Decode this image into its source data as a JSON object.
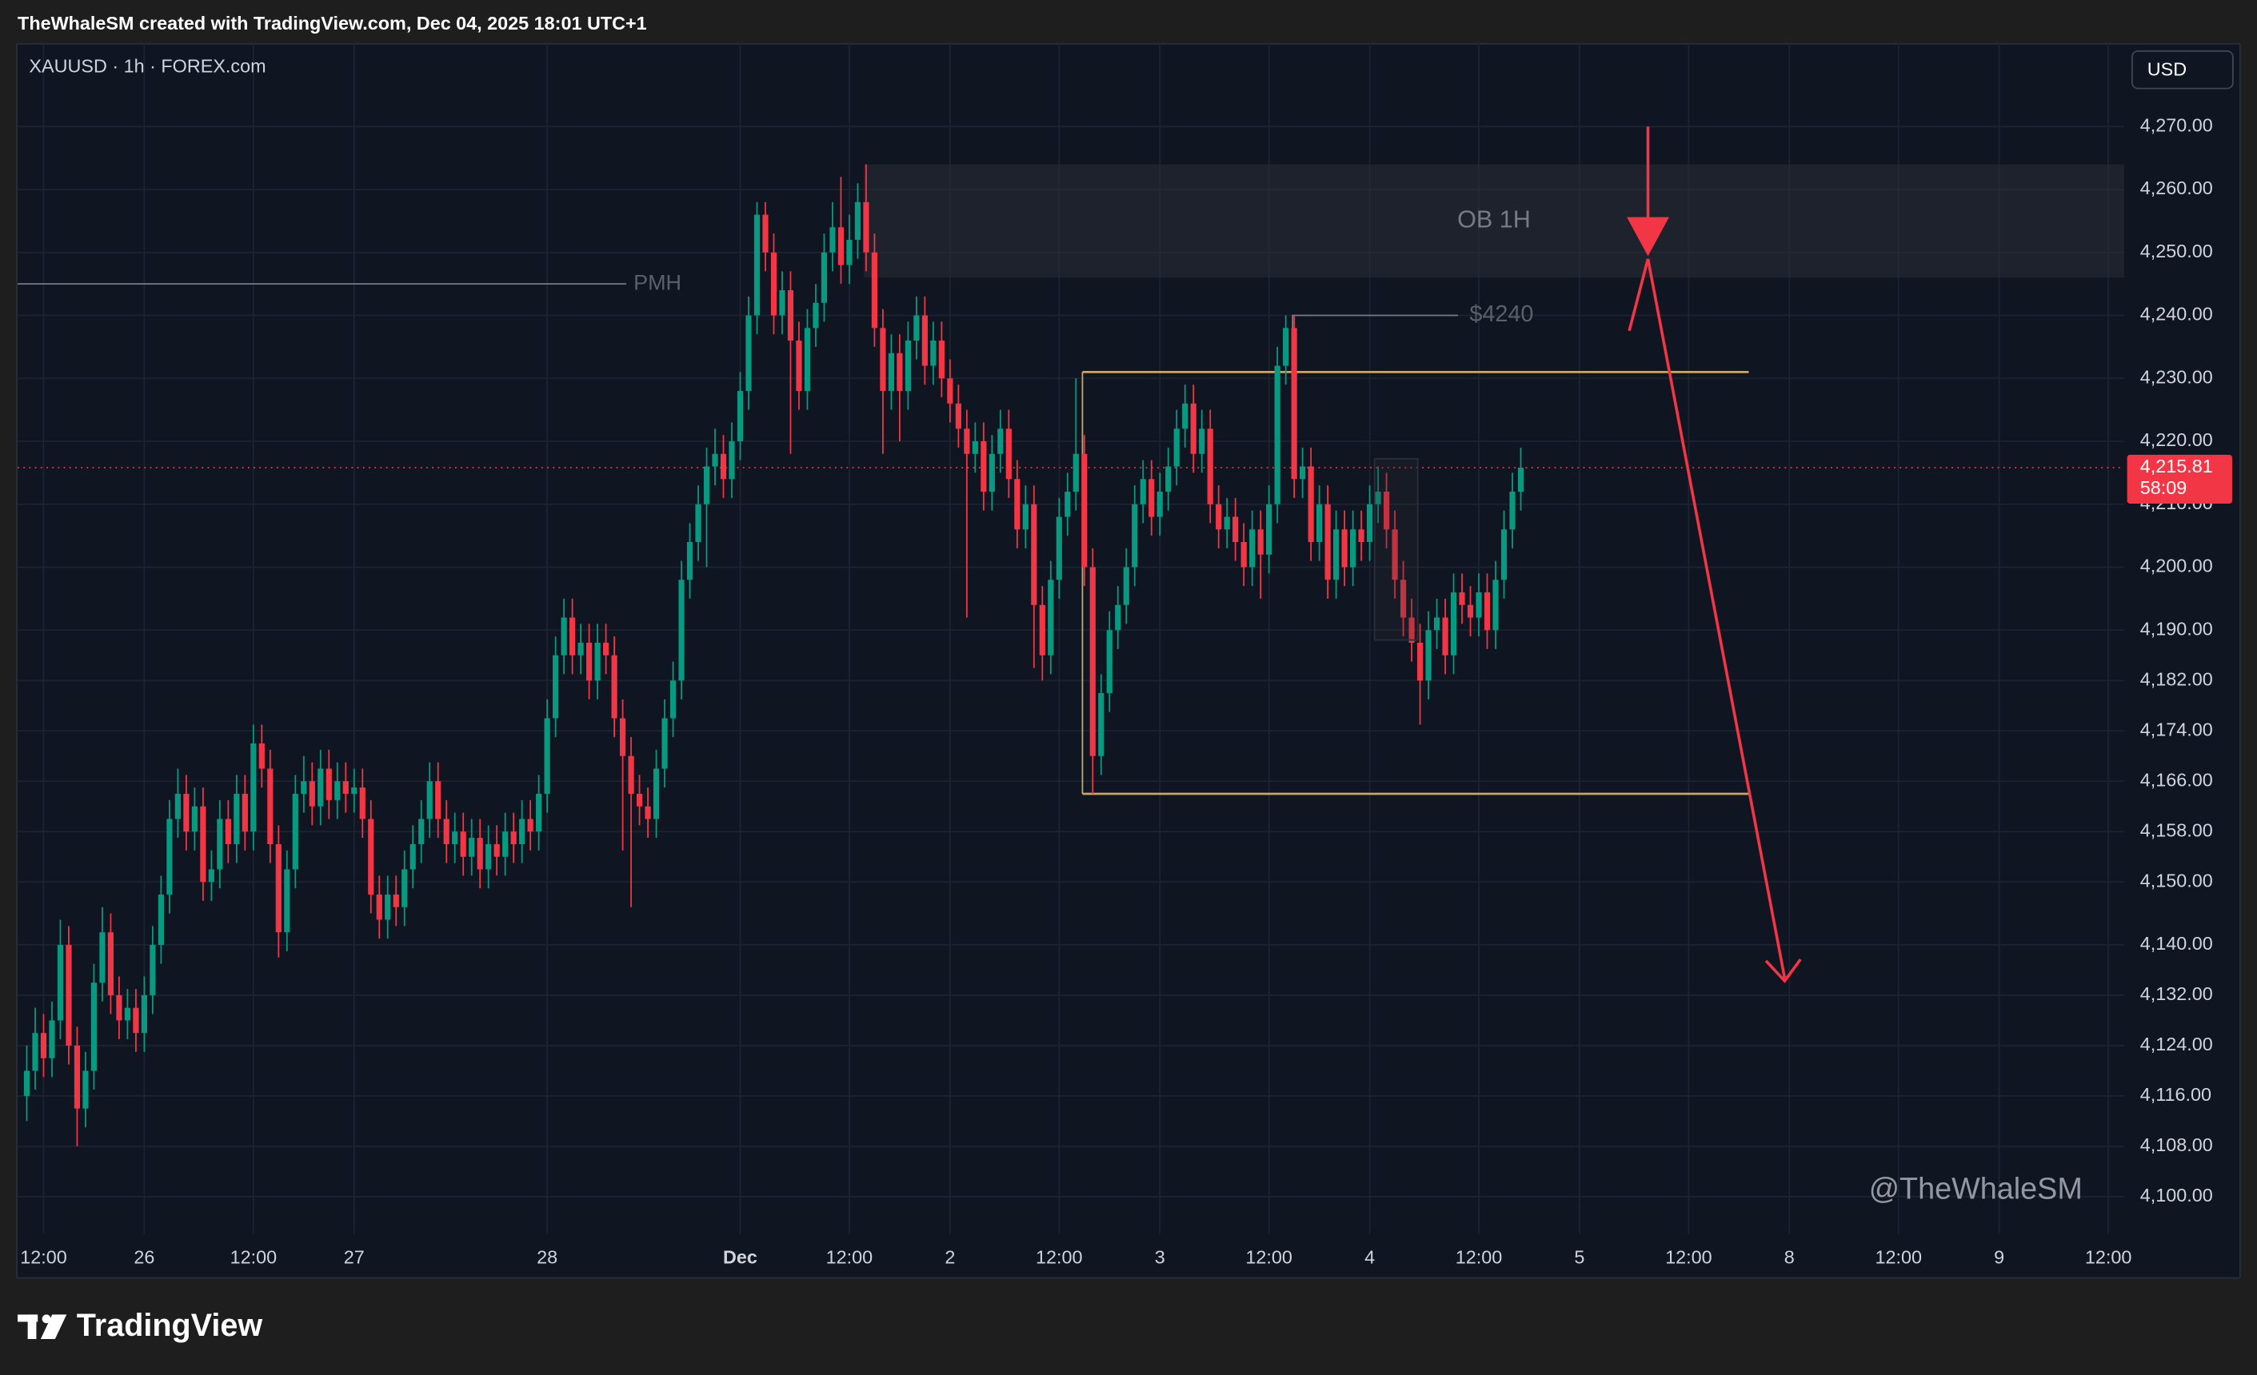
{
  "header": "TheWhaleSM created with TradingView.com, Dec 04, 2025 18:01 UTC+1",
  "brand": "TradingView",
  "chart_data": {
    "type": "candlestick",
    "title": "XAUUSD · 1h · FOREX.com",
    "currency": "USD",
    "watermark": "@TheWhaleSM",
    "up_color": "#089981",
    "down_color": "#f23645",
    "grid": true,
    "last_price": 4215.81,
    "last_price_label": "4,215.81",
    "countdown": "58:09",
    "ylim": [
      4094.06,
      4283.25
    ],
    "yticks": [
      {
        "value": 4270,
        "label": "4,270.00"
      },
      {
        "value": 4260,
        "label": "4,260.00"
      },
      {
        "value": 4250,
        "label": "4,250.00"
      },
      {
        "value": 4240,
        "label": "4,240.00"
      },
      {
        "value": 4230,
        "label": "4,230.00"
      },
      {
        "value": 4220,
        "label": "4,220.00"
      },
      {
        "value": 4210,
        "label": "4,210.00"
      },
      {
        "value": 4200,
        "label": "4,200.00"
      },
      {
        "value": 4190,
        "label": "4,190.00"
      },
      {
        "value": 4182,
        "label": "4,182.00"
      },
      {
        "value": 4174,
        "label": "4,174.00"
      },
      {
        "value": 4166,
        "label": "4,166.00"
      },
      {
        "value": 4158,
        "label": "4,158.00"
      },
      {
        "value": 4150,
        "label": "4,150.00"
      },
      {
        "value": 4140,
        "label": "4,140.00"
      },
      {
        "value": 4132,
        "label": "4,132.00"
      },
      {
        "value": 4124,
        "label": "4,124.00"
      },
      {
        "value": 4116,
        "label": "4,116.00"
      },
      {
        "value": 4108,
        "label": "4,108.00"
      },
      {
        "value": 4100,
        "label": "4,100.00"
      }
    ],
    "xlim": [
      -3.09,
      247.9
    ],
    "xticks": [
      {
        "value": 0,
        "label": "12:00"
      },
      {
        "value": 12,
        "label": "26"
      },
      {
        "value": 25,
        "label": "12:00"
      },
      {
        "value": 37,
        "label": "27"
      },
      {
        "value": 60,
        "label": "28"
      },
      {
        "value": 83,
        "label": "Dec"
      },
      {
        "value": 96,
        "label": "12:00"
      },
      {
        "value": 108,
        "label": "2"
      },
      {
        "value": 121,
        "label": "12:00"
      },
      {
        "value": 133,
        "label": "3"
      },
      {
        "value": 146,
        "label": "12:00"
      },
      {
        "value": 158,
        "label": "4"
      },
      {
        "value": 171,
        "label": "12:00"
      },
      {
        "value": 183,
        "label": "5"
      },
      {
        "value": 196,
        "label": "12:00"
      },
      {
        "value": 208,
        "label": "8"
      },
      {
        "value": 221,
        "label": "12:00"
      },
      {
        "value": 233,
        "label": "9"
      },
      {
        "value": 246,
        "label": "12:00"
      }
    ],
    "ob_zone": {
      "label": "OB 1H",
      "top": 4264,
      "bottom": 4246
    },
    "pmh": {
      "label": "PMH",
      "price": 4245
    },
    "level": {
      "label": "$4240",
      "price": 4240
    },
    "range": {
      "top": 4231,
      "bottom": 4164
    },
    "x": [
      -2,
      -1,
      0,
      1,
      2,
      3,
      4,
      5,
      6,
      7,
      8,
      9,
      10,
      11,
      12,
      13,
      14,
      15,
      16,
      17,
      18,
      19,
      20,
      21,
      22,
      23,
      24,
      25,
      26,
      27,
      28,
      29,
      30,
      31,
      32,
      33,
      34,
      35,
      36,
      37,
      38,
      39,
      40,
      41,
      42,
      43,
      44,
      45,
      46,
      47,
      48,
      49,
      50,
      51,
      52,
      53,
      54,
      55,
      56,
      57,
      58,
      59,
      60,
      61,
      62,
      63,
      64,
      65,
      66,
      67,
      68,
      69,
      70,
      71,
      72,
      73,
      74,
      75,
      76,
      77,
      78,
      79,
      80,
      81,
      82,
      83,
      84,
      85,
      86,
      87,
      88,
      89,
      90,
      91,
      92,
      93,
      94,
      95,
      96,
      97,
      98,
      99,
      100,
      101,
      102,
      103,
      104,
      105,
      106,
      107,
      108,
      109,
      110,
      111,
      112,
      113,
      114,
      115,
      116,
      117,
      118,
      119,
      120,
      121,
      122,
      123,
      124,
      125,
      126,
      127,
      128,
      129,
      130,
      131,
      132,
      133,
      134,
      135,
      136,
      137,
      138,
      139,
      140,
      141,
      142,
      143,
      144,
      145,
      146,
      147,
      148,
      149,
      150,
      151,
      152,
      153,
      154,
      155,
      156,
      157,
      158,
      159,
      160,
      161,
      162,
      163,
      164,
      165,
      166,
      167,
      168,
      169,
      170,
      171,
      172,
      173,
      174,
      175,
      176
    ],
    "candles": [
      [
        4116,
        4124,
        4112,
        4120
      ],
      [
        4120,
        4130,
        4117,
        4126
      ],
      [
        4126,
        4129,
        4119,
        4122
      ],
      [
        4122,
        4131,
        4119,
        4128
      ],
      [
        4128,
        4144,
        4125,
        4140
      ],
      [
        4140,
        4143,
        4121,
        4124
      ],
      [
        4124,
        4127,
        4108,
        4114
      ],
      [
        4114,
        4123,
        4111,
        4120
      ],
      [
        4120,
        4137,
        4117,
        4134
      ],
      [
        4134,
        4146,
        4131,
        4142
      ],
      [
        4142,
        4145,
        4129,
        4132
      ],
      [
        4132,
        4135,
        4125,
        4128
      ],
      [
        4128,
        4133,
        4125,
        4130
      ],
      [
        4130,
        4133,
        4123,
        4126
      ],
      [
        4126,
        4135,
        4123,
        4132
      ],
      [
        4132,
        4143,
        4129,
        4140
      ],
      [
        4140,
        4151,
        4137,
        4148
      ],
      [
        4148,
        4163,
        4145,
        4160
      ],
      [
        4160,
        4168,
        4157,
        4164
      ],
      [
        4164,
        4167,
        4155,
        4158
      ],
      [
        4158,
        4165,
        4155,
        4162
      ],
      [
        4162,
        4165,
        4147,
        4150
      ],
      [
        4150,
        4155,
        4147,
        4152
      ],
      [
        4152,
        4163,
        4149,
        4160
      ],
      [
        4160,
        4163,
        4153,
        4156
      ],
      [
        4156,
        4167,
        4153,
        4164
      ],
      [
        4164,
        4167,
        4155,
        4158
      ],
      [
        4158,
        4175,
        4155,
        4172
      ],
      [
        4172,
        4175,
        4165,
        4168
      ],
      [
        4168,
        4171,
        4153,
        4156
      ],
      [
        4156,
        4159,
        4138,
        4142
      ],
      [
        4142,
        4155,
        4139,
        4152
      ],
      [
        4152,
        4167,
        4149,
        4164
      ],
      [
        4164,
        4170,
        4161,
        4166
      ],
      [
        4166,
        4169,
        4159,
        4162
      ],
      [
        4162,
        4171,
        4159,
        4168
      ],
      [
        4168,
        4171,
        4160,
        4163
      ],
      [
        4163,
        4169,
        4160,
        4166
      ],
      [
        4166,
        4169,
        4161,
        4164
      ],
      [
        4164,
        4168,
        4161,
        4165
      ],
      [
        4165,
        4168,
        4157,
        4160
      ],
      [
        4160,
        4163,
        4145,
        4148
      ],
      [
        4148,
        4151,
        4141,
        4144
      ],
      [
        4144,
        4151,
        4141,
        4148
      ],
      [
        4148,
        4151,
        4143,
        4146
      ],
      [
        4146,
        4155,
        4143,
        4152
      ],
      [
        4152,
        4159,
        4149,
        4156
      ],
      [
        4156,
        4163,
        4153,
        4160
      ],
      [
        4160,
        4169,
        4157,
        4166
      ],
      [
        4166,
        4169,
        4157,
        4160
      ],
      [
        4160,
        4163,
        4153,
        4156
      ],
      [
        4156,
        4161,
        4153,
        4158
      ],
      [
        4158,
        4161,
        4151,
        4154
      ],
      [
        4154,
        4160,
        4151,
        4157
      ],
      [
        4157,
        4160,
        4149,
        4152
      ],
      [
        4152,
        4159,
        4149,
        4156
      ],
      [
        4156,
        4159,
        4151,
        4154
      ],
      [
        4154,
        4161,
        4151,
        4158
      ],
      [
        4158,
        4161,
        4153,
        4156
      ],
      [
        4156,
        4163,
        4153,
        4160
      ],
      [
        4160,
        4163,
        4155,
        4158
      ],
      [
        4158,
        4167,
        4155,
        4164
      ],
      [
        4164,
        4179,
        4161,
        4176
      ],
      [
        4176,
        4189,
        4173,
        4186
      ],
      [
        4186,
        4195,
        4183,
        4192
      ],
      [
        4192,
        4195,
        4183,
        4186
      ],
      [
        4186,
        4191,
        4183,
        4188
      ],
      [
        4188,
        4191,
        4179,
        4182
      ],
      [
        4182,
        4191,
        4179,
        4188
      ],
      [
        4188,
        4191,
        4183,
        4186
      ],
      [
        4186,
        4189,
        4173,
        4176
      ],
      [
        4176,
        4179,
        4155,
        4170
      ],
      [
        4170,
        4173,
        4146,
        4164
      ],
      [
        4164,
        4167,
        4159,
        4162
      ],
      [
        4162,
        4165,
        4157,
        4160
      ],
      [
        4160,
        4171,
        4157,
        4168
      ],
      [
        4168,
        4179,
        4165,
        4176
      ],
      [
        4176,
        4185,
        4173,
        4182
      ],
      [
        4182,
        4201,
        4179,
        4198
      ],
      [
        4198,
        4207,
        4195,
        4204
      ],
      [
        4204,
        4213,
        4201,
        4210
      ],
      [
        4210,
        4219,
        4200,
        4216
      ],
      [
        4216,
        4222,
        4213,
        4218
      ],
      [
        4218,
        4221,
        4211,
        4214
      ],
      [
        4214,
        4223,
        4211,
        4220
      ],
      [
        4220,
        4231,
        4217,
        4228
      ],
      [
        4228,
        4243,
        4225,
        4240
      ],
      [
        4240,
        4258,
        4237,
        4256
      ],
      [
        4256,
        4258,
        4247,
        4250
      ],
      [
        4250,
        4253,
        4237,
        4240
      ],
      [
        4240,
        4247,
        4237,
        4244
      ],
      [
        4244,
        4247,
        4218,
        4236
      ],
      [
        4236,
        4239,
        4225,
        4228
      ],
      [
        4228,
        4241,
        4225,
        4238
      ],
      [
        4238,
        4245,
        4235,
        4242
      ],
      [
        4242,
        4253,
        4239,
        4250
      ],
      [
        4250,
        4258,
        4247,
        4254
      ],
      [
        4254,
        4262,
        4245,
        4248
      ],
      [
        4248,
        4256,
        4245,
        4252
      ],
      [
        4252,
        4261,
        4249,
        4258
      ],
      [
        4258,
        4264,
        4247,
        4250
      ],
      [
        4250,
        4253,
        4235,
        4238
      ],
      [
        4238,
        4241,
        4218,
        4228
      ],
      [
        4228,
        4237,
        4225,
        4234
      ],
      [
        4234,
        4237,
        4220,
        4228
      ],
      [
        4228,
        4239,
        4225,
        4236
      ],
      [
        4236,
        4243,
        4233,
        4240
      ],
      [
        4240,
        4243,
        4229,
        4232
      ],
      [
        4232,
        4239,
        4229,
        4236
      ],
      [
        4236,
        4239,
        4227,
        4230
      ],
      [
        4230,
        4233,
        4223,
        4226
      ],
      [
        4226,
        4229,
        4219,
        4222
      ],
      [
        4222,
        4225,
        4192,
        4218
      ],
      [
        4218,
        4223,
        4215,
        4220
      ],
      [
        4220,
        4223,
        4209,
        4212
      ],
      [
        4212,
        4221,
        4209,
        4218
      ],
      [
        4218,
        4225,
        4215,
        4222
      ],
      [
        4222,
        4225,
        4211,
        4214
      ],
      [
        4214,
        4217,
        4203,
        4206
      ],
      [
        4206,
        4213,
        4203,
        4210
      ],
      [
        4210,
        4213,
        4184,
        4194
      ],
      [
        4194,
        4197,
        4182,
        4186
      ],
      [
        4186,
        4201,
        4183,
        4198
      ],
      [
        4198,
        4211,
        4195,
        4208
      ],
      [
        4208,
        4215,
        4205,
        4212
      ],
      [
        4212,
        4230,
        4209,
        4218
      ],
      [
        4218,
        4221,
        4197,
        4200
      ],
      [
        4200,
        4203,
        4164,
        4170
      ],
      [
        4170,
        4183,
        4167,
        4180
      ],
      [
        4180,
        4193,
        4177,
        4190
      ],
      [
        4190,
        4197,
        4187,
        4194
      ],
      [
        4194,
        4203,
        4191,
        4200
      ],
      [
        4200,
        4213,
        4197,
        4210
      ],
      [
        4210,
        4217,
        4207,
        4214
      ],
      [
        4214,
        4217,
        4205,
        4208
      ],
      [
        4208,
        4215,
        4205,
        4212
      ],
      [
        4212,
        4219,
        4209,
        4216
      ],
      [
        4216,
        4225,
        4213,
        4222
      ],
      [
        4222,
        4229,
        4219,
        4226
      ],
      [
        4226,
        4229,
        4215,
        4218
      ],
      [
        4218,
        4225,
        4215,
        4222
      ],
      [
        4222,
        4225,
        4207,
        4210
      ],
      [
        4210,
        4213,
        4203,
        4206
      ],
      [
        4206,
        4211,
        4203,
        4208
      ],
      [
        4208,
        4211,
        4201,
        4204
      ],
      [
        4204,
        4207,
        4197,
        4200
      ],
      [
        4200,
        4209,
        4197,
        4206
      ],
      [
        4206,
        4209,
        4195,
        4202
      ],
      [
        4202,
        4213,
        4199,
        4210
      ],
      [
        4210,
        4235,
        4207,
        4232
      ],
      [
        4232,
        4240,
        4229,
        4238
      ],
      [
        4238,
        4240,
        4211,
        4214
      ],
      [
        4214,
        4219,
        4211,
        4216
      ],
      [
        4216,
        4219,
        4201,
        4204
      ],
      [
        4204,
        4213,
        4201,
        4210
      ],
      [
        4210,
        4213,
        4195,
        4198
      ],
      [
        4198,
        4209,
        4195,
        4206
      ],
      [
        4206,
        4209,
        4197,
        4200
      ],
      [
        4200,
        4209,
        4197,
        4206
      ],
      [
        4206,
        4209,
        4201,
        4204
      ],
      [
        4204,
        4213,
        4201,
        4210
      ],
      [
        4210,
        4216,
        4207,
        4212
      ],
      [
        4212,
        4215,
        4203,
        4206
      ],
      [
        4206,
        4209,
        4195,
        4198
      ],
      [
        4198,
        4201,
        4189,
        4192
      ],
      [
        4192,
        4195,
        4185,
        4188
      ],
      [
        4188,
        4191,
        4175,
        4182
      ],
      [
        4182,
        4193,
        4179,
        4190
      ],
      [
        4190,
        4195,
        4187,
        4192
      ],
      [
        4192,
        4195,
        4183,
        4186
      ],
      [
        4186,
        4199,
        4183,
        4196
      ],
      [
        4196,
        4199,
        4191,
        4194
      ],
      [
        4194,
        4197,
        4189,
        4192
      ],
      [
        4192,
        4199,
        4189,
        4196
      ],
      [
        4196,
        4199,
        4187,
        4190
      ],
      [
        4190,
        4201,
        4187,
        4198
      ],
      [
        4198,
        4209,
        4195,
        4206
      ],
      [
        4206,
        4215,
        4203,
        4212
      ],
      [
        4212,
        4219,
        4209,
        4215.81
      ]
    ]
  }
}
